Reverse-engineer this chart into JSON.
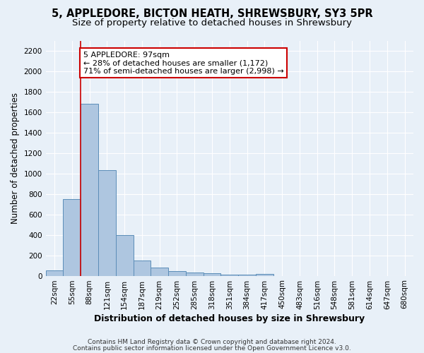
{
  "title": "5, APPLEDORE, BICTON HEATH, SHREWSBURY, SY3 5PR",
  "subtitle": "Size of property relative to detached houses in Shrewsbury",
  "xlabel": "Distribution of detached houses by size in Shrewsbury",
  "ylabel": "Number of detached properties",
  "footnote1": "Contains HM Land Registry data © Crown copyright and database right 2024.",
  "footnote2": "Contains public sector information licensed under the Open Government Licence v3.0.",
  "bar_labels": [
    "22sqm",
    "55sqm",
    "88sqm",
    "121sqm",
    "154sqm",
    "187sqm",
    "219sqm",
    "252sqm",
    "285sqm",
    "318sqm",
    "351sqm",
    "384sqm",
    "417sqm",
    "450sqm",
    "483sqm",
    "516sqm",
    "548sqm",
    "581sqm",
    "614sqm",
    "647sqm",
    "680sqm"
  ],
  "bar_values": [
    50,
    750,
    1680,
    1030,
    400,
    150,
    80,
    45,
    33,
    25,
    10,
    10,
    18,
    0,
    0,
    0,
    0,
    0,
    0,
    0,
    0
  ],
  "bar_color": "#aec6e0",
  "bar_edge_color": "#5b8db8",
  "ylim": [
    0,
    2300
  ],
  "yticks": [
    0,
    200,
    400,
    600,
    800,
    1000,
    1200,
    1400,
    1600,
    1800,
    2000,
    2200
  ],
  "property_bar_index": 2,
  "vline_color": "#cc0000",
  "annotation_text": "5 APPLEDORE: 97sqm\n← 28% of detached houses are smaller (1,172)\n71% of semi-detached houses are larger (2,998) →",
  "annotation_box_color": "#ffffff",
  "annotation_box_edge": "#cc0000",
  "bg_color": "#e8f0f8",
  "grid_color": "#ffffff",
  "title_fontsize": 10.5,
  "subtitle_fontsize": 9.5,
  "axis_label_fontsize": 8.5,
  "tick_fontsize": 7.5,
  "annotation_fontsize": 8,
  "footnote_fontsize": 6.5
}
